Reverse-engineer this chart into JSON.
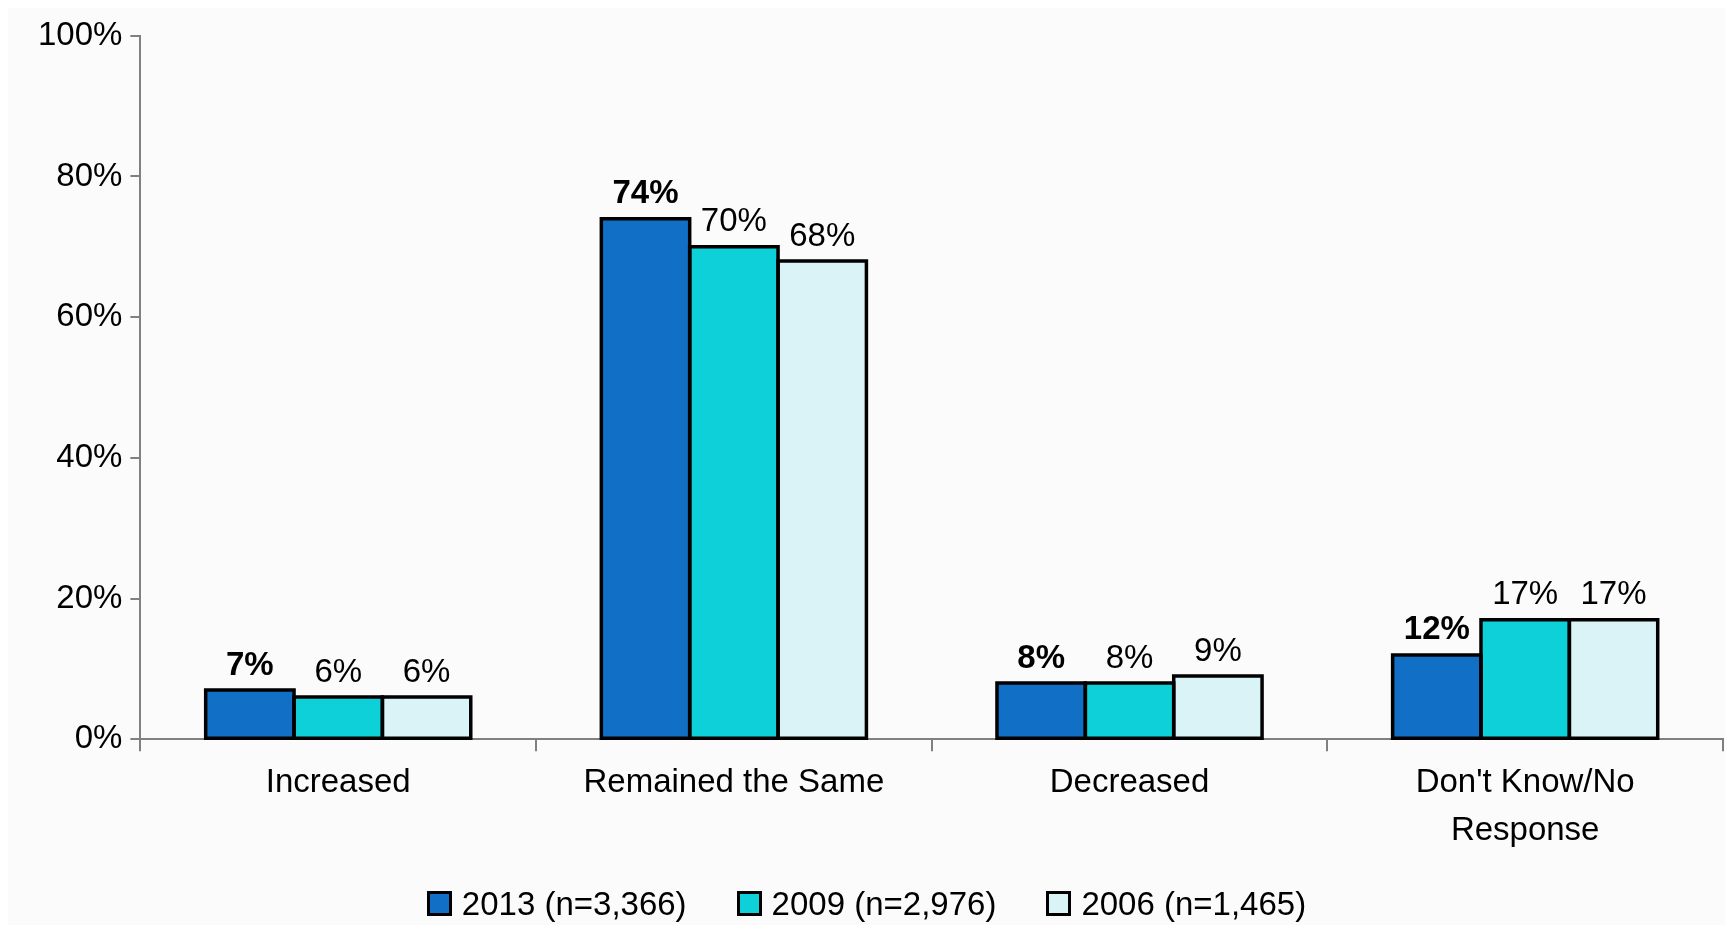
{
  "chart_data": {
    "type": "bar",
    "categories": [
      "Increased",
      "Remained the Same",
      "Decreased",
      "Don't Know/No Response"
    ],
    "series": [
      {
        "name": "2013 (n=3,366)",
        "color": "#1170c6",
        "values": [
          7,
          74,
          8,
          12
        ],
        "value_labels": [
          "7%",
          "74%",
          "8%",
          "12%"
        ]
      },
      {
        "name": "2009 (n=2,976)",
        "color": "#0ed0d8",
        "values": [
          6,
          70,
          8,
          17
        ],
        "value_labels": [
          "6%",
          "70%",
          "8%",
          "17%"
        ]
      },
      {
        "name": "2006 (n=1,465)",
        "color": "#daf3f7",
        "values": [
          6,
          68,
          9,
          17
        ],
        "value_labels": [
          "6%",
          "68%",
          "9%",
          "17%"
        ]
      }
    ],
    "ylim": [
      0,
      100
    ],
    "yticks": [
      {
        "value": 0,
        "label": "0%"
      },
      {
        "value": 20,
        "label": "20%"
      },
      {
        "value": 40,
        "label": "40%"
      },
      {
        "value": 60,
        "label": "60%"
      },
      {
        "value": 80,
        "label": "80%"
      },
      {
        "value": 100,
        "label": "100%"
      }
    ],
    "legend": "bottom"
  }
}
